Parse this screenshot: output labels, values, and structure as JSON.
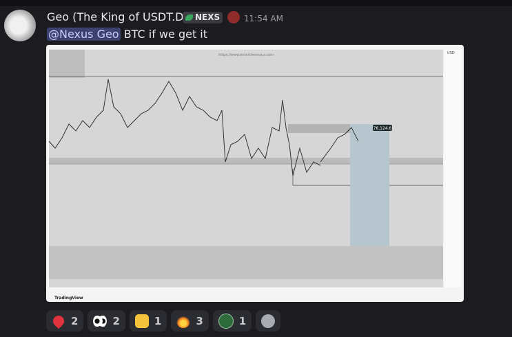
{
  "message": {
    "author": "Geo (The King of USDT.D)",
    "tag": "NEXS",
    "time": "11:54 AM",
    "mention": "@Nexus Geo",
    "text": "BTC if we get it"
  },
  "attachment": {
    "watermark": "https://www.enterthenexus.com",
    "currency": "USD",
    "price_label": "76,124.6",
    "brand": "TradingView"
  },
  "reactions": [
    {
      "count": "2"
    },
    {
      "count": "2"
    },
    {
      "count": "1"
    },
    {
      "count": "3"
    },
    {
      "count": "1"
    }
  ]
}
